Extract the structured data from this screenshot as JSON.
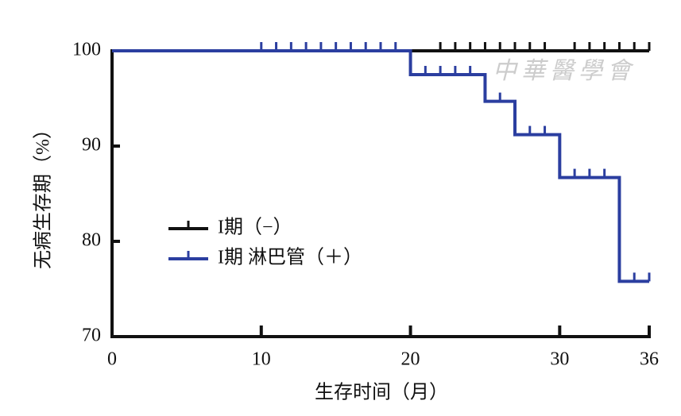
{
  "chart_data": {
    "type": "km",
    "xlabel": "生存时间（月）",
    "ylabel": "无病生存期（%）",
    "watermark": "中華醫學會",
    "xlim": [
      0,
      36
    ],
    "xticks": [
      0,
      10,
      20,
      30,
      36
    ],
    "ylim": [
      70,
      100
    ],
    "yticks": [
      70,
      80,
      90,
      100
    ],
    "series": [
      {
        "name": "I期（−）",
        "color": "#111111",
        "x": [
          0,
          36
        ],
        "values": [
          100,
          100
        ],
        "censor_x": [
          22,
          23,
          24,
          25,
          26,
          27,
          28,
          29,
          31,
          32,
          33,
          34,
          35,
          36
        ]
      },
      {
        "name": "I期 淋巴管（＋）",
        "color": "#2b3ea0",
        "x": [
          0,
          20,
          25,
          27,
          30,
          34,
          36
        ],
        "values": [
          100,
          97.5,
          94.7,
          91.2,
          86.7,
          75.8,
          75.8
        ],
        "censor_x": [
          10,
          11,
          12,
          13,
          14,
          15,
          16,
          17,
          18,
          19,
          21,
          22,
          23,
          24,
          26,
          28,
          29,
          31,
          32,
          33,
          35,
          36
        ]
      }
    ]
  }
}
